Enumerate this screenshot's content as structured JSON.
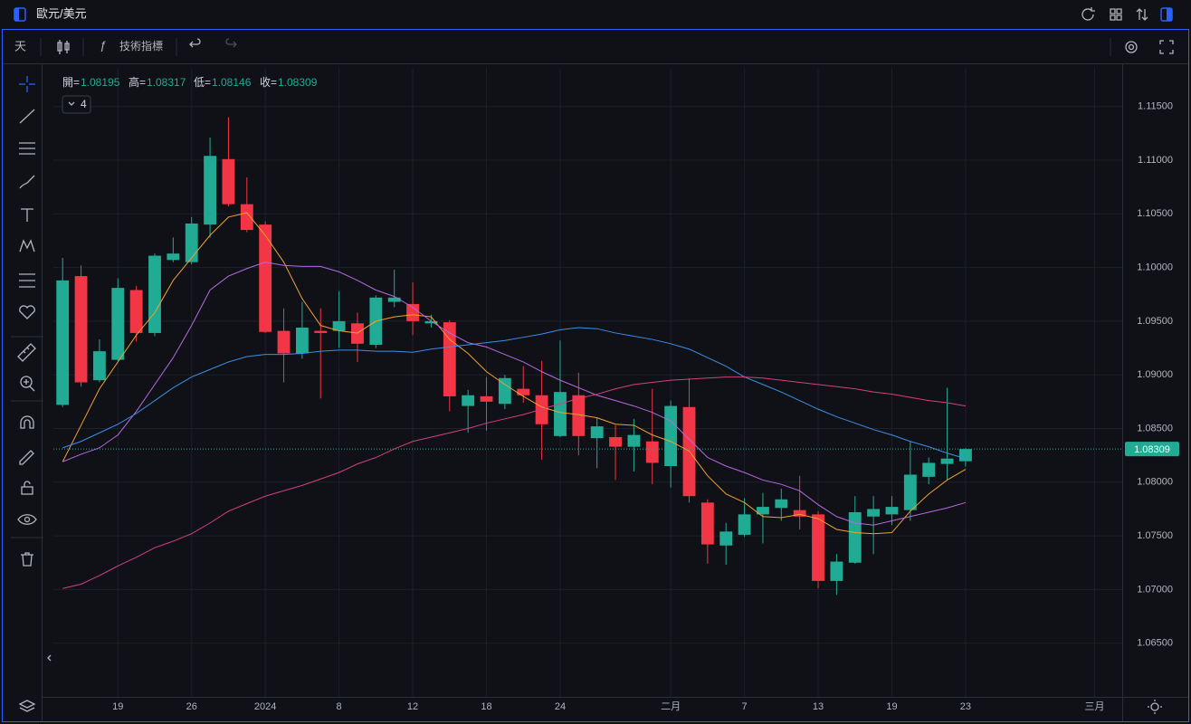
{
  "ui": {
    "symbol": "歐元/美元",
    "interval": "天",
    "indicators_button": "技術指標",
    "indicator_count": 4
  },
  "chart_data": {
    "type": "candlestick",
    "categories": [
      null,
      null,
      null,
      "19",
      null,
      null,
      null,
      "26",
      null,
      null,
      null,
      "2024",
      null,
      null,
      null,
      "8",
      null,
      null,
      null,
      "12",
      null,
      null,
      null,
      "18",
      null,
      null,
      null,
      "24",
      null,
      null,
      null,
      null,
      null,
      "二月",
      null,
      null,
      null,
      "7",
      null,
      null,
      null,
      "13",
      null,
      null,
      null,
      "19",
      null,
      null,
      null,
      "23",
      null,
      null,
      null,
      null,
      null,
      null,
      "三月",
      null
    ],
    "open": [
      1.0872,
      1.0992,
      1.0895,
      1.0914,
      1.0979,
      1.0939,
      1.1007,
      1.1005,
      1.104,
      1.1101,
      1.1059,
      1.104,
      1.0941,
      1.092,
      1.0941,
      1.0941,
      1.0948,
      1.0928,
      1.0968,
      1.0966,
      1.0948,
      1.0949,
      1.0871,
      1.088,
      1.0873,
      1.0887,
      1.0881,
      1.0843,
      1.0881,
      1.0841,
      1.0842,
      1.0833,
      1.0838,
      1.0815,
      1.087,
      1.0781,
      1.0741,
      1.0751,
      1.077,
      1.0776,
      1.0774,
      1.077,
      1.0708,
      1.0725,
      1.0768,
      1.077,
      1.0774,
      1.0805,
      1.0817,
      1.08195,
      null,
      null,
      null,
      null,
      null,
      null,
      null,
      null
    ],
    "high": [
      1.1009,
      1.1002,
      1.0933,
      1.099,
      1.0983,
      1.1013,
      1.1028,
      1.1047,
      1.1121,
      1.114,
      1.1084,
      1.1043,
      1.0962,
      1.0968,
      1.0962,
      1.0978,
      1.0958,
      1.0974,
      1.0998,
      1.0986,
      1.0956,
      1.0951,
      1.0886,
      1.0898,
      1.09,
      1.0908,
      1.0913,
      1.0932,
      1.0902,
      1.086,
      1.0853,
      1.0859,
      1.0887,
      1.0876,
      1.0897,
      1.0784,
      1.0762,
      1.0785,
      1.079,
      1.0794,
      1.0806,
      1.0773,
      1.0733,
      1.0787,
      1.0787,
      1.0787,
      1.0838,
      1.0823,
      1.0888,
      1.08317,
      null,
      null,
      null,
      null,
      null,
      null,
      null,
      null
    ],
    "low": [
      1.087,
      1.0889,
      1.0893,
      1.0913,
      1.0931,
      1.0936,
      1.1005,
      1.1003,
      1.1028,
      1.1057,
      1.1033,
      1.0939,
      1.0893,
      1.0915,
      1.0878,
      1.0925,
      1.0912,
      1.0925,
      1.0963,
      1.0937,
      1.0944,
      1.0866,
      1.0846,
      1.0848,
      1.0868,
      1.0874,
      1.0821,
      1.0842,
      1.0825,
      1.0813,
      1.0802,
      1.081,
      1.0798,
      1.0795,
      1.0781,
      1.0724,
      1.0723,
      1.0749,
      1.0743,
      1.0764,
      1.0756,
      1.0701,
      1.0695,
      1.0724,
      1.0733,
      1.076,
      1.0764,
      1.0798,
      1.0802,
      1.08146,
      null,
      null,
      null,
      null,
      null,
      null,
      null,
      null
    ],
    "close": [
      1.0988,
      1.0893,
      1.0922,
      1.0981,
      1.0939,
      1.1011,
      1.1013,
      1.1041,
      1.1104,
      1.1059,
      1.1035,
      1.094,
      1.092,
      1.0944,
      1.0939,
      1.095,
      1.0929,
      1.0972,
      1.0972,
      1.095,
      1.095,
      1.088,
      1.0881,
      1.0875,
      1.0897,
      1.0881,
      1.0854,
      1.0884,
      1.0843,
      1.0852,
      1.0833,
      1.0844,
      1.0818,
      1.0871,
      1.0787,
      1.0742,
      1.0754,
      1.077,
      1.0777,
      1.0784,
      1.0768,
      1.0708,
      1.0726,
      1.0772,
      1.0775,
      1.0777,
      1.0807,
      1.0818,
      1.0822,
      1.08309,
      null,
      null,
      null,
      null,
      null,
      null,
      null,
      null
    ],
    "up_color": "#22ab94",
    "down_color": "#f23645",
    "ohlc_labels": [
      "開=",
      "高=",
      "低=",
      "收="
    ],
    "series": [
      {
        "color": "#f0a030",
        "values": [
          1.0819,
          1.0853,
          1.0887,
          1.0912,
          1.0937,
          1.0958,
          1.0988,
          1.1009,
          1.103,
          1.1047,
          1.1051,
          1.103,
          1.1005,
          1.0971,
          1.0946,
          1.0941,
          1.0939,
          1.095,
          1.0954,
          1.0956,
          1.0954,
          1.0933,
          1.092,
          1.0903,
          1.0891,
          1.088,
          1.087,
          1.0865,
          1.0863,
          1.086,
          1.0854,
          1.0853,
          1.0844,
          1.0838,
          1.0829,
          1.0806,
          1.0789,
          1.0781,
          1.0768,
          1.0767,
          1.077,
          1.0766,
          1.0756,
          1.0753,
          1.0752,
          1.0753,
          1.0773,
          1.0789,
          1.0802,
          1.0812,
          null,
          null,
          null,
          null,
          null,
          null,
          null,
          null
        ]
      },
      {
        "color": "#b868e0",
        "values": [
          1.0819,
          1.0826,
          1.0832,
          1.0844,
          1.0866,
          1.0891,
          1.0916,
          1.0946,
          1.0979,
          1.0992,
          1.0999,
          1.1005,
          1.1002,
          1.1001,
          1.1001,
          1.0996,
          1.0988,
          1.0979,
          1.0973,
          1.0963,
          1.095,
          1.0939,
          1.093,
          1.0926,
          1.0919,
          1.0912,
          1.0903,
          1.0895,
          1.0888,
          1.0881,
          1.0876,
          1.0871,
          1.0865,
          1.0857,
          1.084,
          1.0823,
          1.0815,
          1.0809,
          1.0802,
          1.0798,
          1.0792,
          1.0779,
          1.0768,
          1.0762,
          1.076,
          1.0764,
          1.0768,
          1.0772,
          1.0776,
          1.0781,
          null,
          null,
          null,
          null,
          null,
          null,
          null,
          null
        ]
      },
      {
        "color": "#3d8ee6",
        "values": [
          1.0832,
          1.0838,
          1.0846,
          1.0854,
          1.0864,
          1.0876,
          1.0888,
          1.0898,
          1.0905,
          1.0912,
          1.0917,
          1.0919,
          1.0919,
          1.092,
          1.0922,
          1.0923,
          1.0923,
          1.0922,
          1.0922,
          1.0921,
          1.0924,
          1.0926,
          1.0928,
          1.093,
          1.0932,
          1.0935,
          1.0938,
          1.0942,
          1.0944,
          1.0943,
          1.0939,
          1.0936,
          1.0933,
          1.0929,
          1.0924,
          1.0916,
          1.0908,
          1.0898,
          1.0891,
          1.0884,
          1.0876,
          1.0868,
          1.0861,
          1.0855,
          1.0849,
          1.0844,
          1.0838,
          1.0833,
          1.0827,
          1.0822,
          null,
          null,
          null,
          null,
          null,
          null,
          null,
          null
        ]
      },
      {
        "color": "#d6407a",
        "values": [
          1.0701,
          1.0705,
          1.0713,
          1.0722,
          1.073,
          1.0739,
          1.0745,
          1.0752,
          1.0762,
          1.0773,
          1.078,
          1.0787,
          1.0792,
          1.0797,
          1.0803,
          1.0809,
          1.0817,
          1.0823,
          1.0831,
          1.0838,
          1.0842,
          1.0846,
          1.085,
          1.0855,
          1.0859,
          1.0863,
          1.0868,
          1.0873,
          1.0878,
          1.0882,
          1.0887,
          1.0891,
          1.0893,
          1.0895,
          1.0896,
          1.0897,
          1.0898,
          1.0898,
          1.0897,
          1.0895,
          1.0893,
          1.0891,
          1.0889,
          1.0887,
          1.0884,
          1.0882,
          1.0879,
          1.0876,
          1.0874,
          1.0871,
          null,
          null,
          null,
          null,
          null,
          null,
          null,
          null
        ]
      }
    ],
    "ylim": [
      1.06,
      1.1186
    ],
    "yticks": [
      {
        "value": 1.065,
        "label": "1.06500"
      },
      {
        "value": 1.07,
        "label": "1.07000"
      },
      {
        "value": 1.075,
        "label": "1.07500"
      },
      {
        "value": 1.08,
        "label": "1.08000"
      },
      {
        "value": 1.085,
        "label": "1.08500"
      },
      {
        "value": 1.09,
        "label": "1.09000"
      },
      {
        "value": 1.095,
        "label": "1.09500"
      },
      {
        "value": 1.1,
        "label": "1.10000"
      },
      {
        "value": 1.105,
        "label": "1.10500"
      },
      {
        "value": 1.11,
        "label": "1.11000"
      },
      {
        "value": 1.115,
        "label": "1.11500"
      }
    ],
    "grid": true
  }
}
